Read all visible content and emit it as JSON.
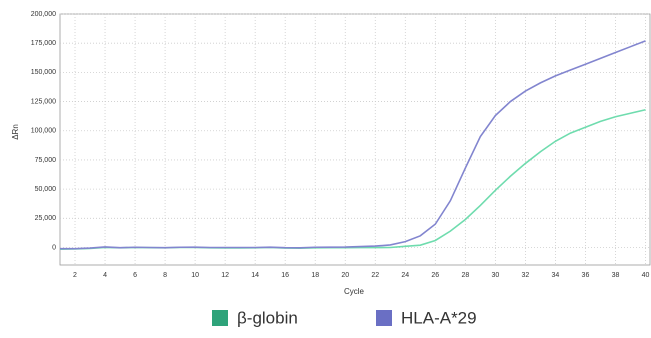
{
  "chart_data": {
    "type": "line",
    "x_label": "Cycle",
    "y_label": "ΔRn",
    "x": [
      1,
      2,
      3,
      4,
      5,
      6,
      7,
      8,
      9,
      10,
      11,
      12,
      13,
      14,
      15,
      16,
      17,
      18,
      19,
      20,
      21,
      22,
      23,
      24,
      25,
      26,
      27,
      28,
      29,
      30,
      31,
      32,
      33,
      34,
      35,
      36,
      37,
      38,
      39,
      40
    ],
    "series": [
      {
        "name": "β-globin",
        "color": "#6fdcae",
        "legend_color": "#2ea37a",
        "values": [
          -1500,
          -1200,
          -800,
          0,
          -300,
          0,
          -200,
          -300,
          0,
          0,
          -300,
          -400,
          -400,
          -300,
          0,
          -500,
          -600,
          -300,
          -200,
          -200,
          -100,
          -100,
          0,
          1000,
          2000,
          6000,
          14000,
          24000,
          36000,
          49000,
          61000,
          72000,
          82000,
          91000,
          98000,
          103000,
          108000,
          112000,
          115000,
          118000
        ]
      },
      {
        "name": "HLA-A*29",
        "color": "#8285cf",
        "legend_color": "#6a6fc4",
        "values": [
          -1000,
          -1000,
          -500,
          500,
          -200,
          200,
          0,
          -200,
          200,
          300,
          0,
          0,
          0,
          0,
          300,
          -200,
          -300,
          200,
          300,
          400,
          800,
          1200,
          2200,
          5000,
          10000,
          20000,
          40000,
          68000,
          95000,
          113000,
          125000,
          134000,
          141000,
          147000,
          152000,
          157000,
          162000,
          167000,
          172000,
          177000
        ]
      }
    ],
    "xlim": [
      1,
      40.3
    ],
    "ylim": [
      -15000,
      200000
    ],
    "xticks": [
      2,
      4,
      6,
      8,
      10,
      12,
      14,
      16,
      18,
      20,
      22,
      24,
      26,
      28,
      30,
      32,
      34,
      36,
      38,
      40
    ],
    "yticks": [
      0,
      {
        "value": 25000,
        "label": "25,000"
      },
      {
        "value": 50000,
        "label": "50,000"
      },
      {
        "value": 75000,
        "label": "75,000"
      },
      {
        "value": 100000,
        "label": "100,000"
      },
      {
        "value": 125000,
        "label": "125,000"
      },
      {
        "value": 150000,
        "label": "150,000"
      },
      {
        "value": 175000,
        "label": "175,000"
      },
      {
        "value": 200000,
        "label": "200,000"
      }
    ],
    "grid": true
  }
}
